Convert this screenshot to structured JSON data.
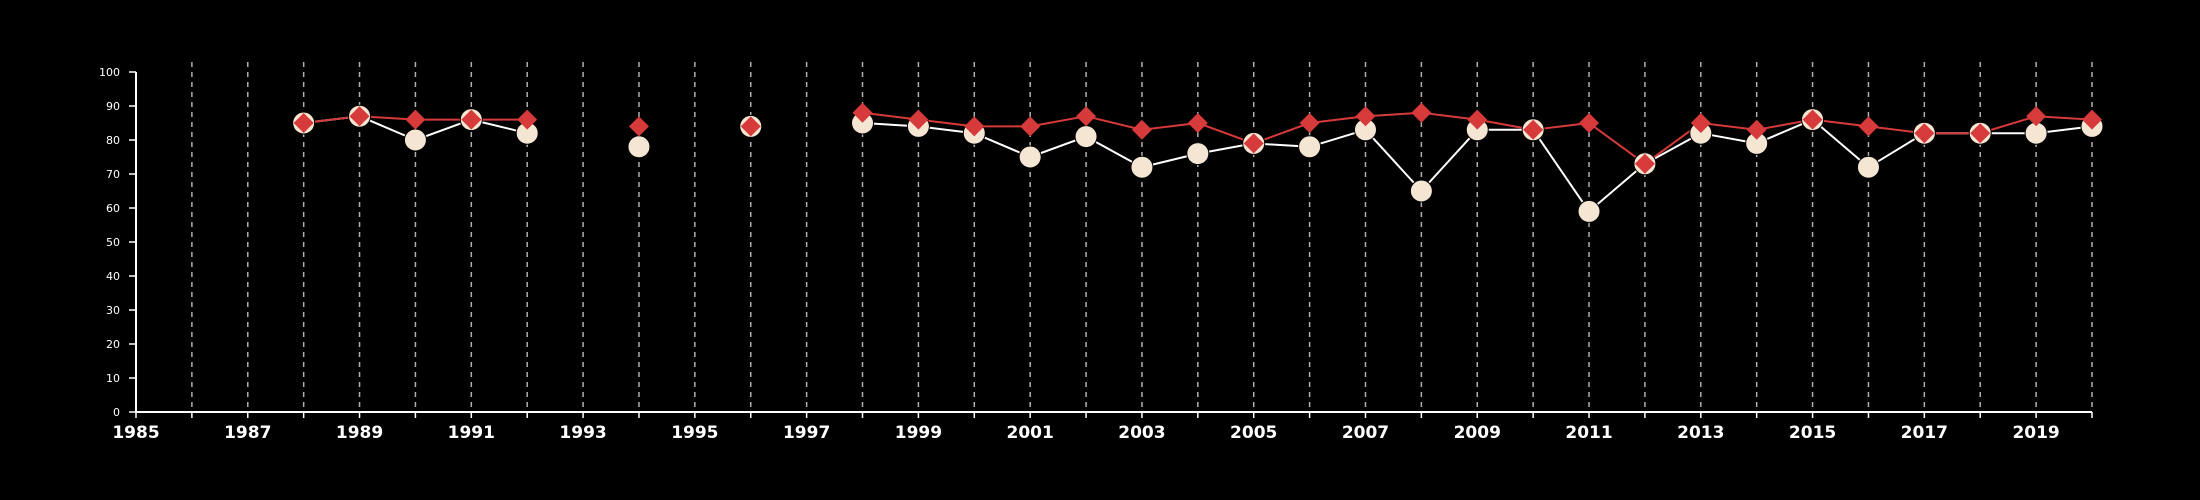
{
  "chart_data": {
    "type": "line",
    "title": "",
    "xlabel": "",
    "ylabel": "",
    "xlim": [
      1985,
      2020
    ],
    "ylim": [
      0,
      100
    ],
    "yticks": [
      0,
      10,
      20,
      30,
      40,
      50,
      60,
      70,
      80,
      90,
      100
    ],
    "xticks": [
      1985,
      1987,
      1989,
      1991,
      1993,
      1995,
      1997,
      1999,
      2001,
      2003,
      2005,
      2007,
      2009,
      2011,
      2013,
      2015,
      2017,
      2019
    ],
    "grid_x_years": [
      1986,
      1987,
      1988,
      1989,
      1990,
      1991,
      1992,
      1993,
      1994,
      1995,
      1996,
      1997,
      1998,
      1999,
      2000,
      2001,
      2002,
      2003,
      2004,
      2005,
      2006,
      2007,
      2008,
      2009,
      2010,
      2011,
      2012,
      2013,
      2014,
      2015,
      2016,
      2017,
      2018,
      2019,
      2020
    ],
    "grid_x": true,
    "grid_y": false,
    "legend": "none",
    "series": [
      {
        "color": "#f5e6d3",
        "marker": "circle",
        "line_color": "#ffffff",
        "points": [
          [
            1988,
            85
          ],
          [
            1989,
            87
          ],
          [
            1990,
            80
          ],
          [
            1991,
            86
          ],
          [
            1992,
            82
          ],
          [
            1994,
            78
          ],
          [
            1996,
            84
          ],
          [
            1998,
            85
          ],
          [
            1999,
            84
          ],
          [
            2000,
            82
          ],
          [
            2001,
            75
          ],
          [
            2002,
            81
          ],
          [
            2003,
            72
          ],
          [
            2004,
            76
          ],
          [
            2005,
            79
          ],
          [
            2006,
            78
          ],
          [
            2007,
            83
          ],
          [
            2008,
            65
          ],
          [
            2009,
            83
          ],
          [
            2010,
            83
          ],
          [
            2011,
            59
          ],
          [
            2012,
            73
          ],
          [
            2013,
            82
          ],
          [
            2014,
            79
          ],
          [
            2015,
            86
          ],
          [
            2016,
            72
          ],
          [
            2017,
            82
          ],
          [
            2018,
            82
          ],
          [
            2019,
            82
          ],
          [
            2020,
            84
          ]
        ]
      },
      {
        "color": "#d63a3a",
        "marker": "diamond",
        "line_color": "#d63a3a",
        "points": [
          [
            1988,
            85
          ],
          [
            1989,
            87
          ],
          [
            1990,
            86
          ],
          [
            1991,
            86
          ],
          [
            1992,
            86
          ],
          [
            1994,
            84
          ],
          [
            1996,
            84
          ],
          [
            1998,
            88
          ],
          [
            1999,
            86
          ],
          [
            2000,
            84
          ],
          [
            2001,
            84
          ],
          [
            2002,
            87
          ],
          [
            2003,
            83
          ],
          [
            2004,
            85
          ],
          [
            2005,
            79
          ],
          [
            2006,
            85
          ],
          [
            2007,
            87
          ],
          [
            2008,
            88
          ],
          [
            2009,
            86
          ],
          [
            2010,
            83
          ],
          [
            2011,
            85
          ],
          [
            2012,
            73
          ],
          [
            2013,
            85
          ],
          [
            2014,
            83
          ],
          [
            2015,
            86
          ],
          [
            2016,
            84
          ],
          [
            2017,
            82
          ],
          [
            2018,
            82
          ],
          [
            2019,
            87
          ],
          [
            2020,
            86
          ]
        ]
      }
    ]
  }
}
